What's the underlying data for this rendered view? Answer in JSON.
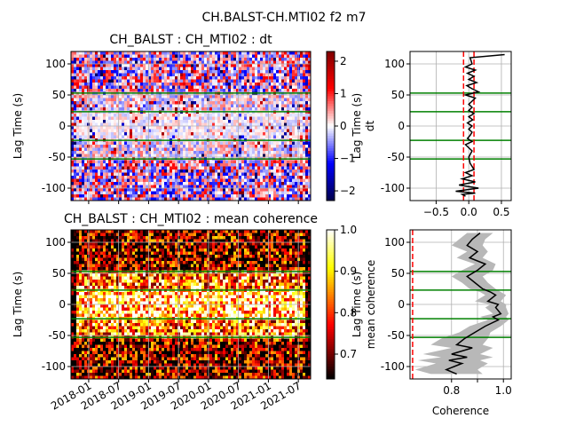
{
  "figure": {
    "title": "CH.BALST-CH.MTI02 f2 m7"
  },
  "chart_data": [
    {
      "id": "dt-heatmap",
      "type": "heatmap",
      "title": "CH_BALST : CH_MTI02 : dt",
      "xlabel": "",
      "ylabel": "Lag Time (s)",
      "xlim": [
        "2017-09-15",
        "2021-09-15"
      ],
      "ylim": [
        -120,
        120
      ],
      "yticks": [
        -100,
        -50,
        0,
        50,
        100
      ],
      "xticks": [
        "2018-01",
        "2018-07",
        "2019-01",
        "2019-07",
        "2020-01",
        "2020-07",
        "2021-01",
        "2021-07"
      ],
      "xtick_labels_visible": false,
      "colormap": "seismic",
      "colorbar": {
        "range": [
          -2.3,
          2.3
        ],
        "ticks": [
          -2,
          -1,
          0,
          1,
          2
        ]
      },
      "hlines": [
        53,
        23,
        -23,
        -53
      ],
      "hline_color": "#008000",
      "grid": true
    },
    {
      "id": "dt-profile",
      "type": "line",
      "xlabel": "dt",
      "ylabel": "Lag Time (s)",
      "xlim": [
        -0.9,
        0.65
      ],
      "ylim": [
        -120,
        120
      ],
      "xticks": [
        -0.5,
        0.0,
        0.5
      ],
      "yticks": [
        -100,
        -50,
        0,
        50,
        100
      ],
      "series": [
        {
          "x": [
            0.55,
            0.02,
            0.05,
            -0.05,
            0.1,
            -0.02,
            0.08,
            0.0,
            0.12,
            -0.03,
            0.05,
            0.15,
            -0.05,
            0.1,
            0.05,
            0.0,
            0.05,
            0.0,
            0.08,
            0.0,
            0.06,
            -0.02,
            0.05,
            0.0,
            0.05,
            0.02,
            -0.02,
            0.05,
            -0.05,
            0.05,
            0.0,
            0.02,
            0.08,
            -0.05,
            0.05,
            -0.1,
            0.1,
            -0.15,
            0.15,
            -0.2,
            0.1,
            -0.1,
            -0.05
          ],
          "y": [
            115,
            110,
            100,
            95,
            90,
            85,
            80,
            75,
            70,
            65,
            60,
            55,
            50,
            45,
            40,
            35,
            30,
            25,
            20,
            15,
            10,
            5,
            0,
            -5,
            -10,
            -15,
            -20,
            -25,
            -30,
            -40,
            -50,
            -60,
            -70,
            -75,
            -80,
            -85,
            -90,
            -95,
            -100,
            -105,
            -108,
            -110,
            -113
          ],
          "color": "#000000"
        }
      ],
      "vlines": [
        -0.08,
        0.08
      ],
      "vline_color": "#ff0000",
      "hlines": [
        53,
        23,
        -23,
        -53
      ],
      "hline_color": "#008000",
      "grid": true
    },
    {
      "id": "coh-heatmap",
      "type": "heatmap",
      "title": "CH_BALST : CH_MTI02 : mean coherence",
      "xlabel": "",
      "ylabel": "Lag Time (s)",
      "xlim": [
        "2017-09-15",
        "2021-09-15"
      ],
      "ylim": [
        -120,
        120
      ],
      "yticks": [
        -100,
        -50,
        0,
        50,
        100
      ],
      "xticks": [
        "2018-01",
        "2018-07",
        "2019-01",
        "2019-07",
        "2020-01",
        "2020-07",
        "2021-01",
        "2021-07"
      ],
      "colormap": "hot",
      "colorbar": {
        "range": [
          0.64,
          1.0
        ],
        "ticks": [
          0.7,
          0.8,
          0.9,
          1.0
        ],
        "tick_labels": [
          "0.7",
          "0.8",
          "0.9",
          "1.0"
        ]
      },
      "hlines": [
        53,
        23,
        -23,
        -53
      ],
      "hline_color": "#008000",
      "grid": true
    },
    {
      "id": "coh-profile",
      "type": "line",
      "xlabel": "Coherence",
      "ylabel": "mean coherence",
      "ylabel2": "Lag Time (s)",
      "xlim": [
        0.64,
        1.03
      ],
      "ylim": [
        -120,
        120
      ],
      "xticks": [
        0.8,
        0.9,
        1.0
      ],
      "xtick_labels": [
        "0.8",
        "",
        "1.0"
      ],
      "yticks": [
        -100,
        -50,
        0,
        50,
        100
      ],
      "series": [
        {
          "name": "mean",
          "x": [
            0.91,
            0.88,
            0.86,
            0.9,
            0.87,
            0.93,
            0.9,
            0.86,
            0.89,
            0.92,
            0.95,
            0.97,
            0.94,
            0.98,
            0.97,
            0.99,
            0.96,
            0.98,
            0.93,
            0.89,
            0.85,
            0.82,
            0.88,
            0.8,
            0.86,
            0.79,
            0.84,
            0.81,
            0.78,
            0.82
          ],
          "y": [
            115,
            105,
            95,
            85,
            75,
            65,
            55,
            45,
            35,
            25,
            20,
            15,
            5,
            0,
            -5,
            -15,
            -20,
            -25,
            -35,
            -45,
            -55,
            -65,
            -70,
            -80,
            -85,
            -90,
            -95,
            -100,
            -105,
            -112
          ],
          "color": "#000000",
          "band": [
            0.05,
            0.05,
            0.06,
            0.04,
            0.05,
            0.04,
            0.06,
            0.06,
            0.05,
            0.05,
            0.04,
            0.04,
            0.05,
            0.03,
            0.04,
            0.03,
            0.05,
            0.04,
            0.06,
            0.06,
            0.09,
            0.1,
            0.08,
            0.11,
            0.1,
            0.12,
            0.1,
            0.11,
            0.12,
            0.1
          ],
          "band_color": "#b8b8b8"
        }
      ],
      "vlines": [
        0.65
      ],
      "vline_color": "#ff0000",
      "hlines": [
        53,
        23,
        -23,
        -53
      ],
      "hline_color": "#008000",
      "grid": true
    }
  ]
}
